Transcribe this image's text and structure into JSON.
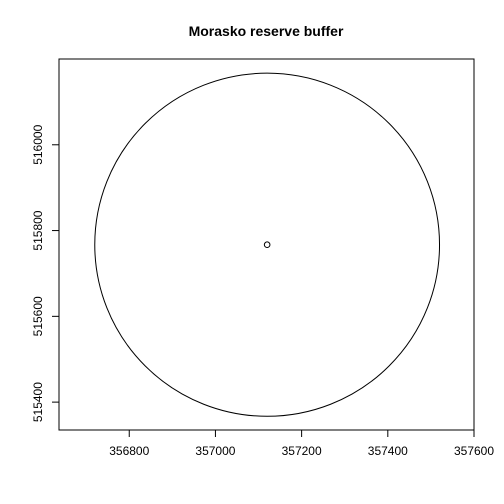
{
  "chart_data": {
    "type": "scatter",
    "title": "Morasko reserve buffer",
    "xlabel": "",
    "ylabel": "",
    "xlim": [
      356637,
      357600
    ],
    "ylim": [
      515335,
      516200
    ],
    "x_ticks": [
      356800,
      357000,
      357200,
      357400,
      357600
    ],
    "y_ticks": [
      515400,
      515600,
      515800,
      516000
    ],
    "grid": false,
    "legend": "none",
    "points": [
      {
        "x": 357120,
        "y": 515767
      }
    ],
    "buffer": {
      "center": {
        "x": 357120,
        "y": 515767
      },
      "radius": 400
    },
    "colors": {
      "line": "#000000",
      "background": "#ffffff"
    }
  }
}
